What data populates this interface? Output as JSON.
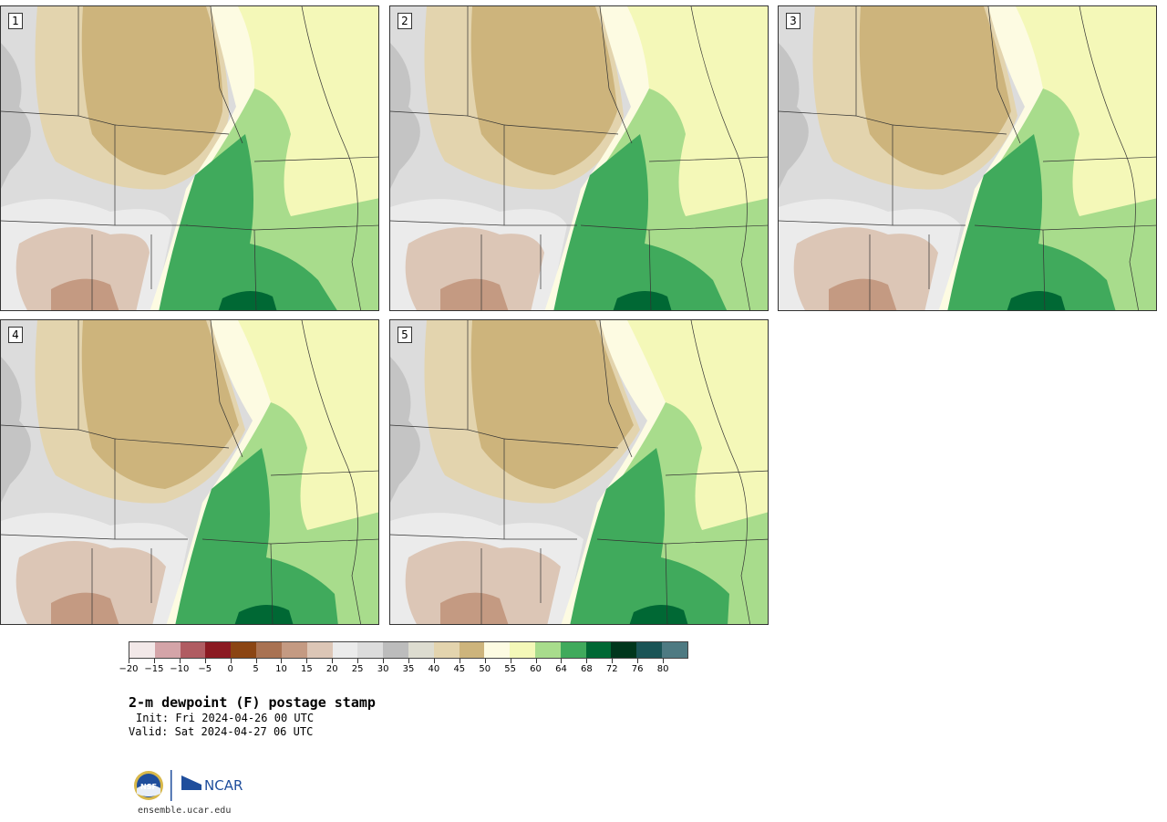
{
  "panels": [
    {
      "label": "1",
      "variant": 1
    },
    {
      "label": "2",
      "variant": 2
    },
    {
      "label": "3",
      "variant": 3
    },
    {
      "label": "4",
      "variant": 4
    },
    {
      "label": "5",
      "variant": 5
    }
  ],
  "colorbar": {
    "colors": [
      "#f2e8e8",
      "#d4a4a8",
      "#b05c62",
      "#8b1a22",
      "#8b4513",
      "#a97252",
      "#c49a82",
      "#dcc6b6",
      "#ebebeb",
      "#dcdcdc",
      "#bcbcbc",
      "#dddcd0",
      "#e3d4ae",
      "#cdb47c",
      "#fdfbe2",
      "#f4f8b8",
      "#a8dc8c",
      "#40aa5c",
      "#006834",
      "#00361c",
      "#1a5456",
      "#4e7a82"
    ],
    "tick_labels": [
      "−20",
      "−15",
      "−10",
      "−5",
      "0",
      "5",
      "10",
      "15",
      "20",
      "25",
      "30",
      "35",
      "40",
      "45",
      "50",
      "55",
      "60",
      "64",
      "68",
      "72",
      "76",
      "80"
    ]
  },
  "title": "2-m dewpoint (F) postage stamp",
  "init": "Init: Fri 2024-04-26 00 UTC",
  "valid": "Valid: Sat 2024-04-27 06 UTC",
  "logos": {
    "nsf": "NSF",
    "ncar": "NCAR"
  },
  "site": "ensemble.ucar.edu"
}
